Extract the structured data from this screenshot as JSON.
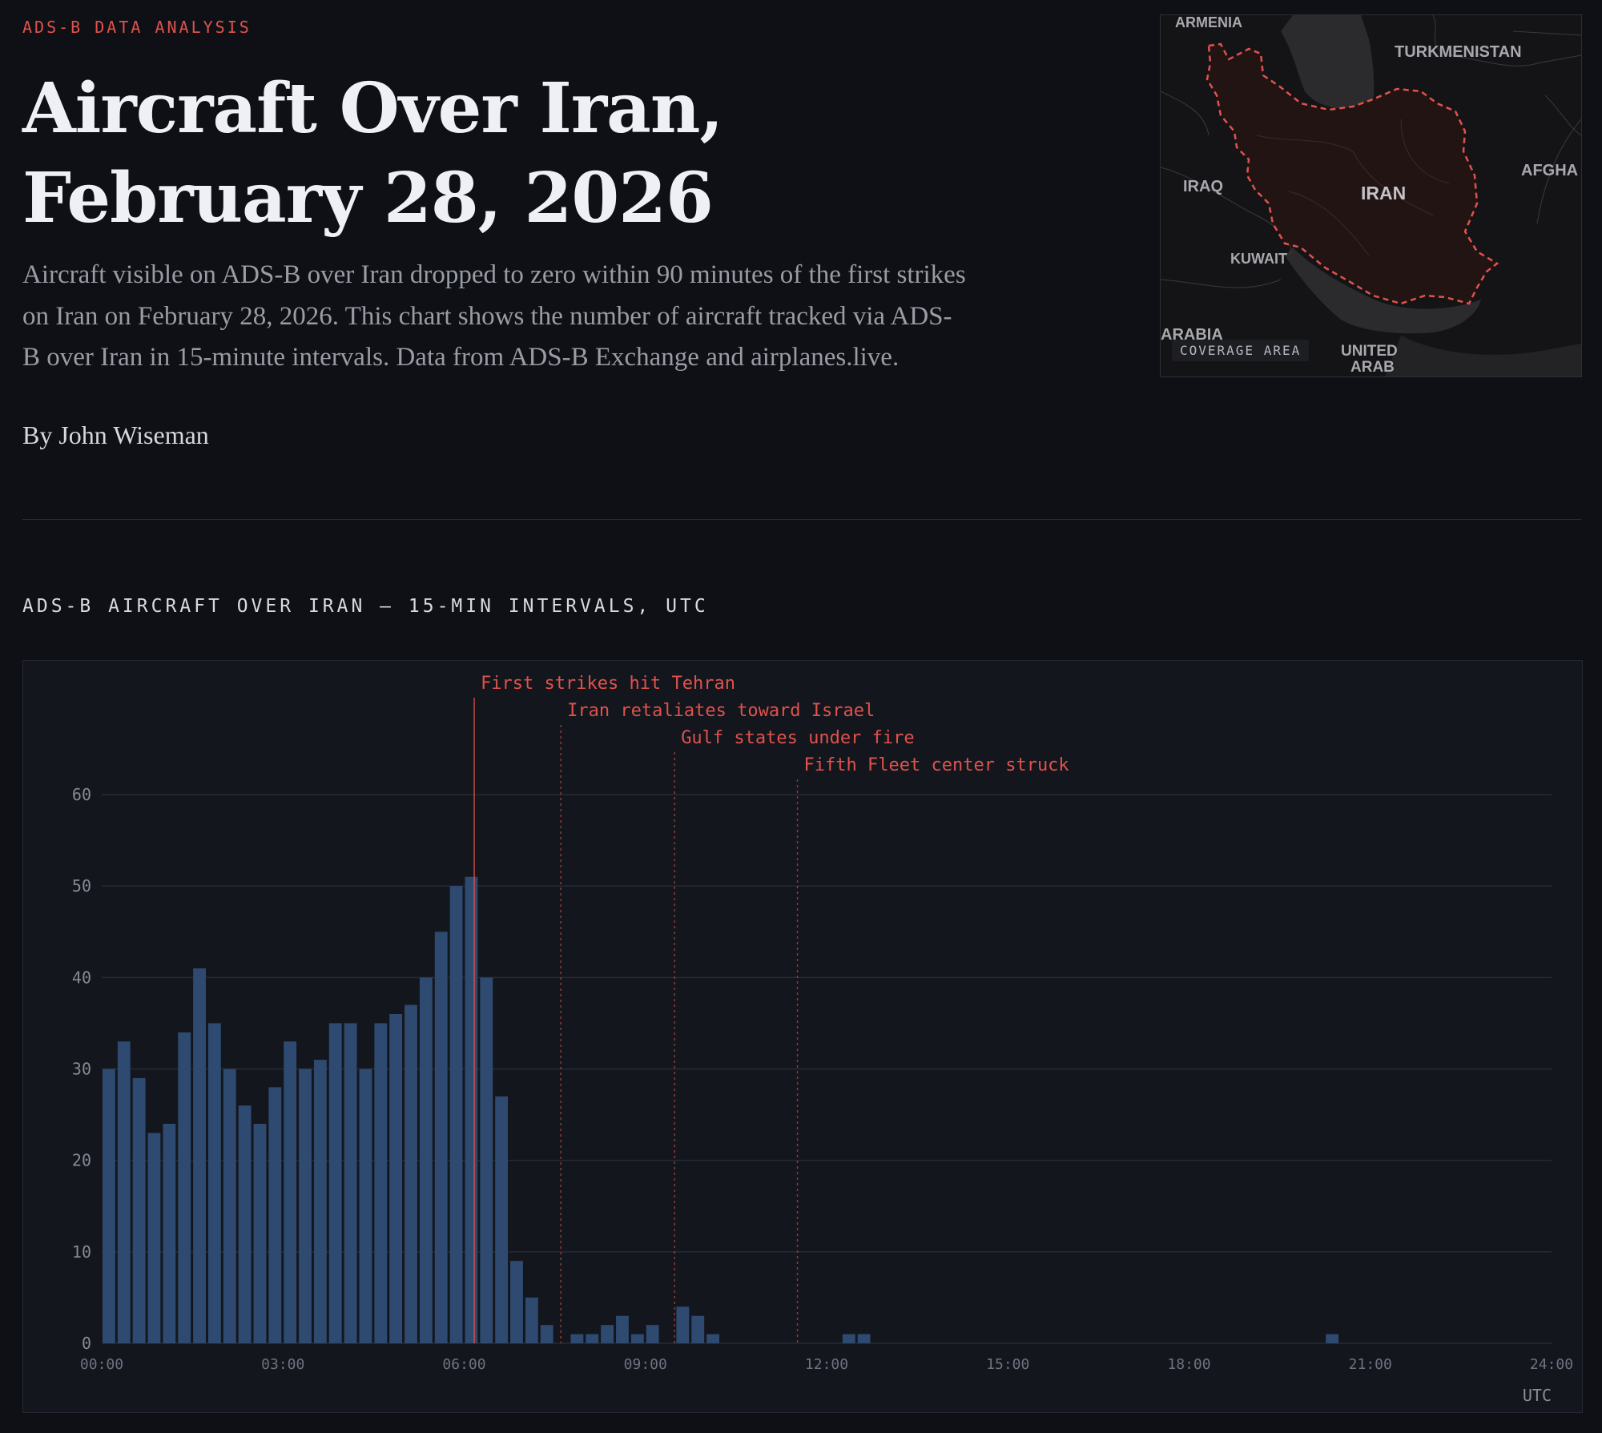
{
  "header": {
    "kicker": "ADS-B DATA ANALYSIS",
    "title": "Aircraft Over Iran, February 28, 2026",
    "description": "Aircraft visible on ADS-B over Iran dropped to zero within 90 minutes of the first strikes on Iran on February 28, 2026. This chart shows the number of aircraft tracked via ADS-B over Iran in 15-minute intervals. Data from ADS-B Exchange and airplanes.live.",
    "byline": "By John Wiseman"
  },
  "map": {
    "labels": {
      "armenia": "ARMENIA",
      "turkmenistan": "TURKMENISTAN",
      "iraq": "IRAQ",
      "iran": "IRAN",
      "afghanistan": "AFGHA",
      "kuwait": "KUWAIT",
      "arabia": "ARABIA",
      "united_arab_1": "UNITED",
      "united_arab_2": "ARAB"
    },
    "coverage_label": "COVERAGE AREA",
    "highlight_color": "#e0524c"
  },
  "chart_data": {
    "type": "bar",
    "title": "ADS-B AIRCRAFT OVER IRAN — 15-MIN INTERVALS, UTC",
    "xlabel": "UTC",
    "ylabel": "",
    "x_start": "00:00",
    "x_interval_minutes": 15,
    "xlim": [
      "00:00",
      "24:00"
    ],
    "x_ticks": [
      "00:00",
      "03:00",
      "06:00",
      "09:00",
      "12:00",
      "15:00",
      "18:00",
      "21:00",
      "24:00"
    ],
    "ylim": [
      0,
      60
    ],
    "y_ticks": [
      0,
      10,
      20,
      30,
      40,
      50,
      60
    ],
    "grid": true,
    "bar_color": "#2e4a70",
    "values": [
      30,
      33,
      29,
      23,
      24,
      34,
      41,
      35,
      30,
      26,
      24,
      28,
      33,
      30,
      31,
      35,
      35,
      30,
      35,
      36,
      37,
      40,
      45,
      50,
      51,
      40,
      27,
      9,
      5,
      2,
      0,
      1,
      1,
      2,
      3,
      1,
      2,
      0,
      4,
      3,
      1,
      0,
      0,
      0,
      0,
      0,
      0,
      0,
      0,
      1,
      1,
      0,
      0,
      0,
      0,
      0,
      0,
      0,
      0,
      0,
      0,
      0,
      0,
      0,
      0,
      0,
      0,
      0,
      0,
      0,
      0,
      0,
      0,
      0,
      0,
      0,
      0,
      0,
      0,
      0,
      0,
      1,
      0,
      0,
      0,
      0,
      0,
      0,
      0,
      0,
      0,
      0,
      0,
      0,
      0,
      0,
      0
    ],
    "annotations": [
      {
        "time": "06:10",
        "label": "First strikes hit Tehran",
        "style": "solid"
      },
      {
        "time": "07:36",
        "label": "Iran retaliates toward Israel",
        "style": "dashed"
      },
      {
        "time": "09:29",
        "label": "Gulf states under fire",
        "style": "dashed"
      },
      {
        "time": "11:31",
        "label": "Fifth Fleet center struck",
        "style": "dashed"
      }
    ],
    "annotation_color": "#e0524c"
  }
}
